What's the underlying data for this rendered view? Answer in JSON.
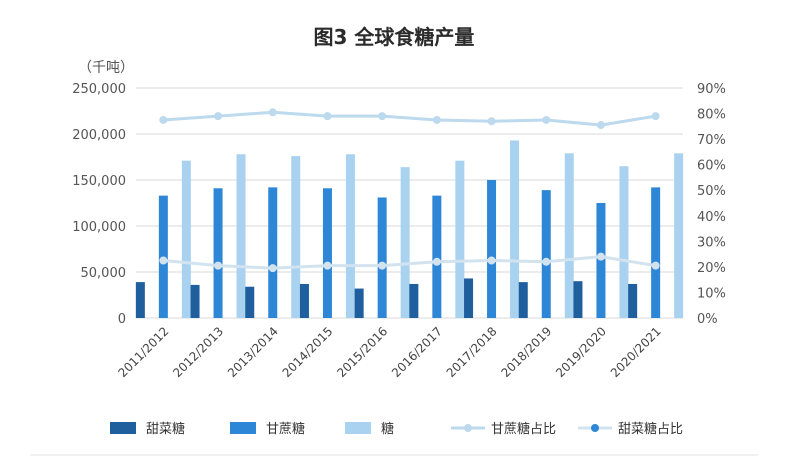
{
  "chart_data": {
    "type": "bar",
    "title": "图3  全球食糖产量",
    "ylabel": "（千吨）",
    "ylim": [
      0,
      250000
    ],
    "y2lim": [
      0,
      0.9
    ],
    "yticks": [
      "250,000",
      "200,000",
      "150,000",
      "100,000",
      "50,000",
      "0"
    ],
    "y2ticks": [
      "90%",
      "80%",
      "70%",
      "60%",
      "50%",
      "40%",
      "30%",
      "20%",
      "10%",
      "0%"
    ],
    "grid": true,
    "legend": "bottom",
    "categories": [
      "2011/2012",
      "2012/2013",
      "2013/2014",
      "2014/2015",
      "2015/2016",
      "2016/2017",
      "2017/2018",
      "2018/2019",
      "2019/2020",
      "2020/2021"
    ],
    "series": [
      {
        "name": "甜菜糖",
        "type": "bar",
        "color": "#1f5f9e",
        "values": [
          39000,
          36000,
          34000,
          37000,
          32000,
          37000,
          43000,
          39000,
          40000,
          37000
        ]
      },
      {
        "name": "甘蔗糖",
        "type": "bar",
        "color": "#2e86d6",
        "values": [
          133000,
          141000,
          142000,
          141000,
          131000,
          133000,
          150000,
          139000,
          125000,
          142000
        ]
      },
      {
        "name": "糖",
        "type": "bar",
        "color": "#a9d2f0",
        "values": [
          171000,
          178000,
          176000,
          178000,
          164000,
          171000,
          193000,
          179000,
          165000,
          179000
        ]
      },
      {
        "name": "甘蔗糖占比",
        "type": "line",
        "axis": "right",
        "color": "#bcd9ee",
        "values": [
          0.775,
          0.79,
          0.805,
          0.79,
          0.79,
          0.775,
          0.77,
          0.775,
          0.755,
          0.79
        ]
      },
      {
        "name": "甜菜糖占比",
        "type": "line",
        "axis": "right",
        "color": "#d2e3ef",
        "values": [
          0.225,
          0.205,
          0.195,
          0.205,
          0.205,
          0.22,
          0.225,
          0.22,
          0.24,
          0.205
        ]
      }
    ]
  }
}
